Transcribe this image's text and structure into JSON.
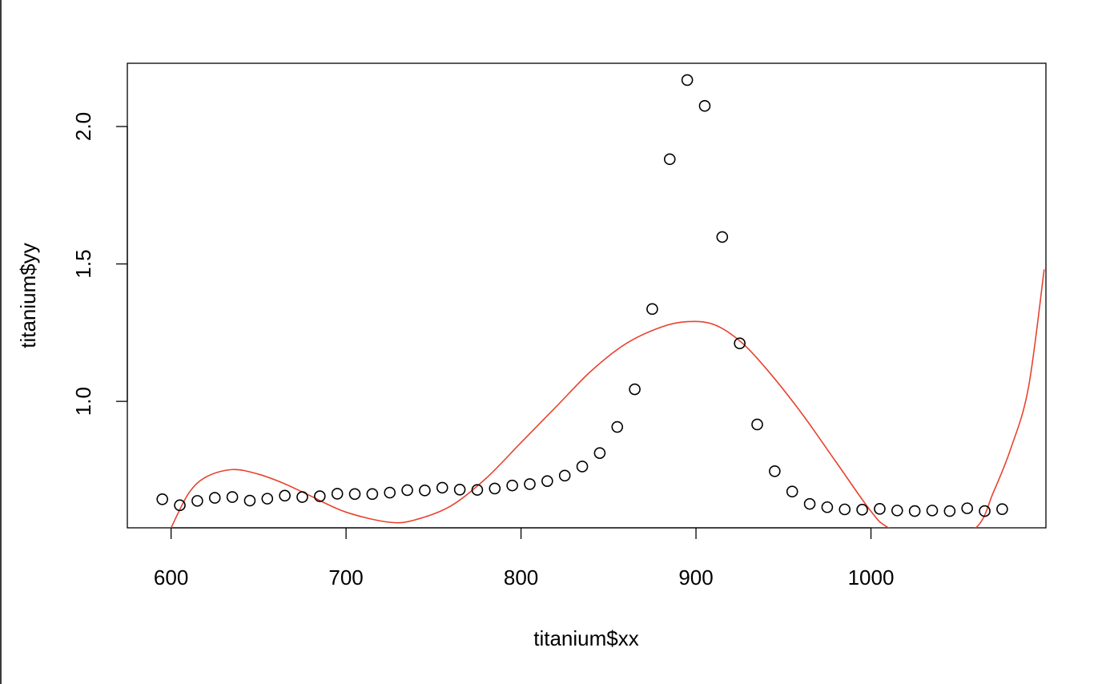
{
  "chart_data": {
    "type": "scatter",
    "title": "",
    "xlabel": "titanium$xx",
    "ylabel": "titanium$yy",
    "xlim": [
      575,
      1100
    ],
    "ylim": [
      0.54,
      2.23
    ],
    "x_ticks": [
      600,
      700,
      800,
      900,
      1000
    ],
    "y_ticks": [
      1.0,
      1.5,
      2.0
    ],
    "x_tick_labels": [
      "600",
      "700",
      "800",
      "900",
      "1000"
    ],
    "y_tick_labels": [
      "1.0",
      "1.5",
      "2.0"
    ],
    "grid": false,
    "series": [
      {
        "kind": "points",
        "x": [
          595,
          605,
          615,
          625,
          635,
          645,
          655,
          665,
          675,
          685,
          695,
          705,
          715,
          725,
          735,
          745,
          755,
          765,
          775,
          785,
          795,
          805,
          815,
          825,
          835,
          845,
          855,
          865,
          875,
          885,
          895,
          905,
          915,
          925,
          935,
          945,
          955,
          965,
          975,
          985,
          995,
          1005,
          1015,
          1025,
          1035,
          1045,
          1055,
          1065,
          1075
        ],
        "y": [
          0.644,
          0.622,
          0.638,
          0.649,
          0.652,
          0.639,
          0.646,
          0.657,
          0.652,
          0.655,
          0.664,
          0.663,
          0.663,
          0.668,
          0.677,
          0.676,
          0.686,
          0.679,
          0.678,
          0.683,
          0.694,
          0.699,
          0.71,
          0.73,
          0.763,
          0.812,
          0.907,
          1.044,
          1.336,
          1.881,
          2.169,
          2.075,
          1.598,
          1.211,
          0.916,
          0.746,
          0.672,
          0.627,
          0.615,
          0.607,
          0.606,
          0.609,
          0.603,
          0.601,
          0.603,
          0.601,
          0.611,
          0.601,
          0.608
        ],
        "color": "#000000"
      },
      {
        "kind": "curve",
        "x": [
          600,
          610,
          620,
          635,
          650,
          665,
          680,
          700,
          725,
          740,
          760,
          780,
          800,
          820,
          840,
          860,
          880,
          895,
          910,
          925,
          940,
          960,
          980,
          1000,
          1010,
          1035,
          1060,
          1070,
          1080,
          1090,
          1099
        ],
        "y": [
          0.54,
          0.665,
          0.725,
          0.752,
          0.735,
          0.7,
          0.655,
          0.597,
          0.56,
          0.57,
          0.62,
          0.72,
          0.85,
          0.98,
          1.11,
          1.21,
          1.27,
          1.29,
          1.28,
          1.22,
          1.12,
          0.96,
          0.78,
          0.6,
          0.54,
          0.46,
          0.54,
          0.67,
          0.83,
          1.05,
          1.48
        ],
        "color": "#e8432e"
      }
    ]
  }
}
